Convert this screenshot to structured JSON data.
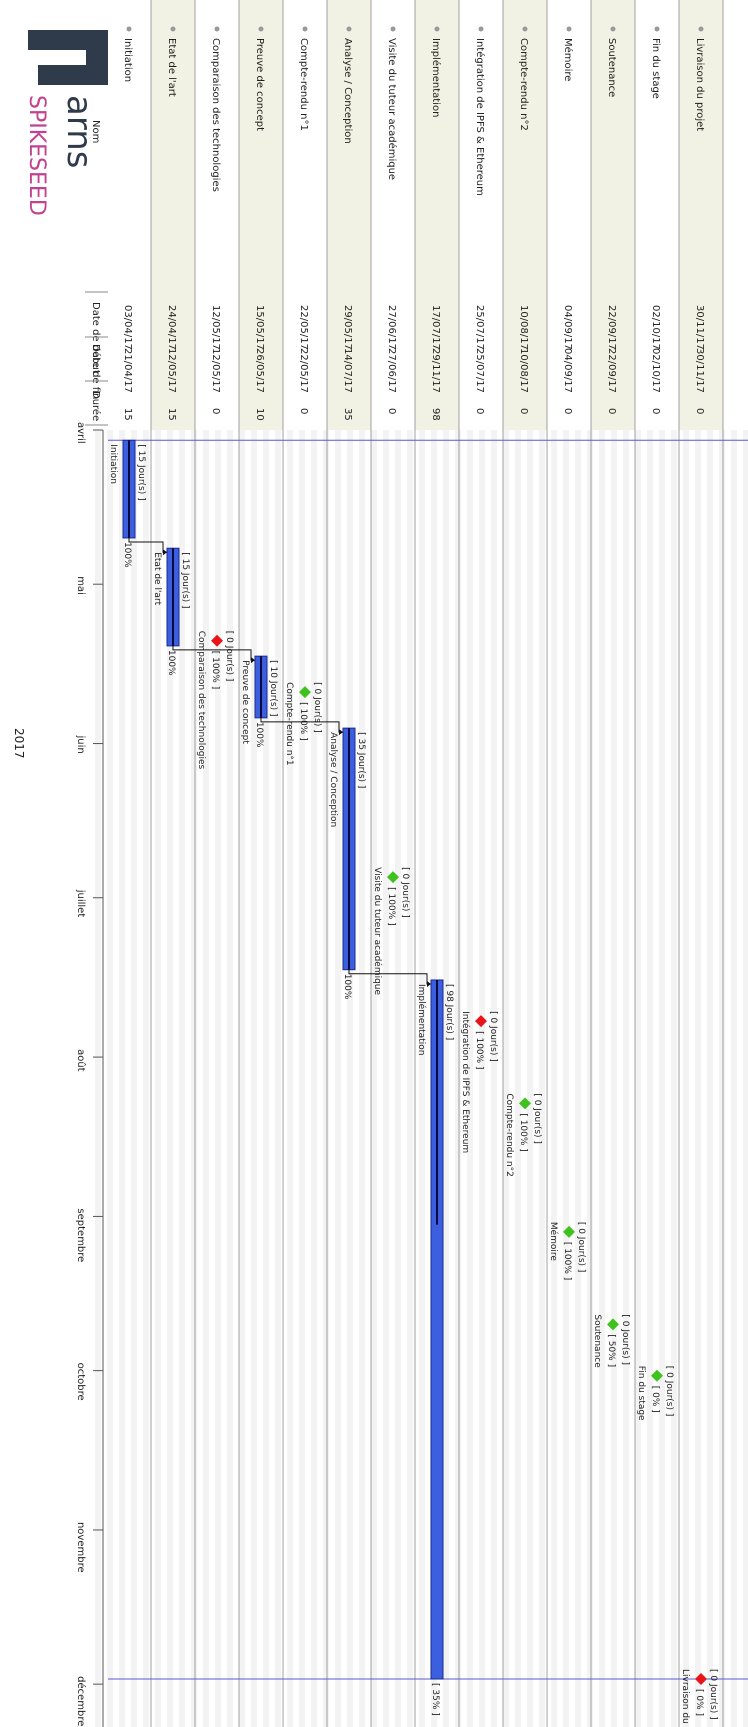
{
  "logo": {
    "text_top": "arns",
    "text_bottom": "SPIKESEED",
    "mark_color": "#2f3b4a",
    "accent_color": "#c2428f"
  },
  "table": {
    "headers": {
      "name": "Nom",
      "start": "Date de début",
      "end": "Date de fin",
      "duration": "Durée"
    }
  },
  "colors": {
    "bar": "#3c5fe0",
    "bar_border": "#1a2a90",
    "milestone_done": "#3fc21e",
    "milestone_key": "#e8141a",
    "stripe": "#f2f2e4",
    "grid": "#8a8a8a",
    "today": "#5a5ad0"
  },
  "chart_data": {
    "type": "gantt",
    "year": "2017",
    "months": [
      "avril",
      "mai",
      "juin",
      "juillet",
      "août",
      "septembre",
      "octobre",
      "novembre",
      "décembre"
    ],
    "tasks": [
      {
        "name": "Initiation",
        "start": "03/04/17",
        "end": "21/04/17",
        "duration": "15",
        "kind": "task",
        "bar_label": "Initiation",
        "days_label": "[ 15 Jour(s) ]",
        "pct_label": "100%"
      },
      {
        "name": "Etat de l'art",
        "start": "24/04/17",
        "end": "12/05/17",
        "duration": "15",
        "kind": "task",
        "bar_label": "Etat de l'art",
        "days_label": "[ 15 Jour(s) ]",
        "pct_label": "100%"
      },
      {
        "name": "Comparaison des technologies",
        "start": "12/05/17",
        "end": "12/05/17",
        "duration": "0",
        "kind": "milestone_key",
        "bar_label": "Comparaison des technologies",
        "days_label": "[ 0 Jour(s) ]",
        "pct_label": "[ 100% ]"
      },
      {
        "name": "Preuve de concept",
        "start": "15/05/17",
        "end": "26/05/17",
        "duration": "10",
        "kind": "task",
        "bar_label": "Preuve de concept",
        "days_label": "[ 10 Jour(s) ]",
        "pct_label": "100%"
      },
      {
        "name": "Compte-rendu n°1",
        "start": "22/05/17",
        "end": "22/05/17",
        "duration": "0",
        "kind": "milestone",
        "bar_label": "Compte-rendu n°1",
        "days_label": "[ 0 Jour(s) ]",
        "pct_label": "[ 100% ]"
      },
      {
        "name": "Analyse / Conception",
        "start": "29/05/17",
        "end": "14/07/17",
        "duration": "35",
        "kind": "task",
        "bar_label": "Analyse / Conception",
        "days_label": "[ 35 Jour(s) ]",
        "pct_label": "100%"
      },
      {
        "name": "Visite du tuteur académique",
        "start": "27/06/17",
        "end": "27/06/17",
        "duration": "0",
        "kind": "milestone",
        "bar_label": "Visite du tuteur académique",
        "days_label": "[ 0 Jour(s) ]",
        "pct_label": "[ 100% ]"
      },
      {
        "name": "Implémentation",
        "start": "17/07/17",
        "end": "29/11/17",
        "duration": "98",
        "kind": "task",
        "bar_label": "Implémentation",
        "days_label": "[ 98 Jour(s) ]",
        "pct_label": "[ 35% ]",
        "progress": 0.35
      },
      {
        "name": "Intégration de IPFS & Ethereum",
        "start": "25/07/17",
        "end": "25/07/17",
        "duration": "0",
        "kind": "milestone_key",
        "bar_label": "Intégration de IPFS & Ethereum",
        "days_label": "[ 0 Jour(s) ]",
        "pct_label": "[ 100% ]"
      },
      {
        "name": "Compte-rendu n°2",
        "start": "10/08/17",
        "end": "10/08/17",
        "duration": "0",
        "kind": "milestone",
        "bar_label": "Compte-rendu n°2",
        "days_label": "[ 0 Jour(s) ]",
        "pct_label": "[ 100% ]"
      },
      {
        "name": "Mémoire",
        "start": "04/09/17",
        "end": "04/09/17",
        "duration": "0",
        "kind": "milestone",
        "bar_label": "Mémoire",
        "days_label": "[ 0 Jour(s) ]",
        "pct_label": "[ 100% ]"
      },
      {
        "name": "Soutenance",
        "start": "22/09/17",
        "end": "22/09/17",
        "duration": "0",
        "kind": "milestone",
        "bar_label": "Soutenance",
        "days_label": "[ 0 Jour(s) ]",
        "pct_label": "[ 50% ]"
      },
      {
        "name": "Fin du stage",
        "start": "02/10/17",
        "end": "02/10/17",
        "duration": "0",
        "kind": "milestone",
        "bar_label": "Fin du stage",
        "days_label": "[ 0 Jour(s) ]",
        "pct_label": "[ 0% ]"
      },
      {
        "name": "Livraison du projet",
        "start": "30/11/17",
        "end": "30/11/17",
        "duration": "0",
        "kind": "milestone_key",
        "bar_label": "Livraison du projet",
        "days_label": "[ 0 Jour(s) ]",
        "pct_label": "[ 0% ]"
      }
    ],
    "dependencies": [
      [
        "Initiation",
        "Etat de l'art"
      ],
      [
        "Etat de l'art",
        "Preuve de concept"
      ],
      [
        "Preuve de concept",
        "Analyse / Conception"
      ],
      [
        "Analyse / Conception",
        "Implémentation"
      ]
    ]
  }
}
